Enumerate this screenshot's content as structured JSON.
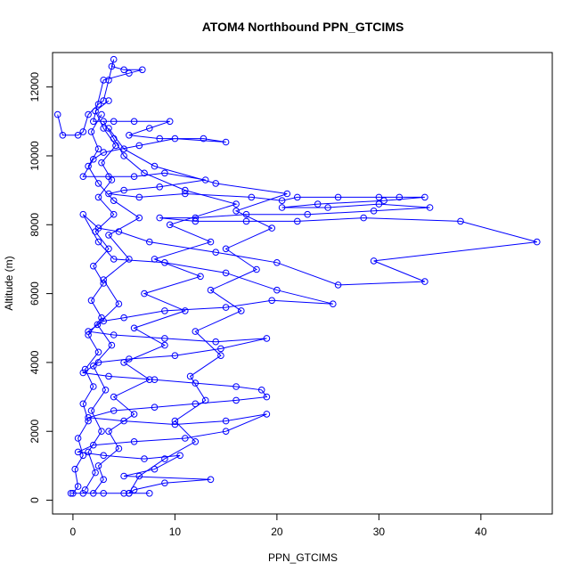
{
  "chart_data": {
    "type": "line",
    "title": "ATOM4 Northbound PPN_GTCIMS",
    "xlabel": "PPN_GTCIMS",
    "ylabel": "Altitude (m)",
    "xlim": [
      -2,
      47
    ],
    "ylim": [
      -400,
      13000
    ],
    "x_ticks": [
      0,
      10,
      20,
      30,
      40
    ],
    "y_ticks": [
      0,
      2000,
      4000,
      6000,
      8000,
      10000,
      12000
    ],
    "grid": false,
    "markers": "open-circle",
    "series_color": "#0000ff",
    "series": [
      {
        "values": [
          [
            -1.5,
            11200
          ],
          [
            -1.0,
            10600
          ],
          [
            0.5,
            10600
          ],
          [
            1.0,
            10700
          ],
          [
            1.5,
            11200
          ],
          [
            2.5,
            11500
          ],
          [
            3.0,
            11600
          ],
          [
            3.5,
            12200
          ],
          [
            4.0,
            12800
          ],
          [
            3.8,
            12600
          ],
          [
            5.0,
            12500
          ],
          [
            6.8,
            12500
          ],
          [
            5.5,
            12400
          ],
          [
            3.0,
            12200
          ],
          [
            2.0,
            11000
          ],
          [
            4.0,
            11000
          ],
          [
            6.0,
            11000
          ],
          [
            9.5,
            11000
          ],
          [
            7.5,
            10800
          ],
          [
            5.5,
            10600
          ],
          [
            8.5,
            10500
          ],
          [
            12.8,
            10500
          ],
          [
            15.0,
            10400
          ],
          [
            10.0,
            10500
          ],
          [
            6.5,
            10300
          ],
          [
            3.0,
            10100
          ],
          [
            2.0,
            9900
          ],
          [
            1.0,
            9400
          ],
          [
            3.5,
            9400
          ],
          [
            6.0,
            9400
          ],
          [
            9.0,
            9500
          ],
          [
            13.0,
            9300
          ],
          [
            8.5,
            9100
          ],
          [
            5.0,
            9000
          ],
          [
            3.5,
            8900
          ],
          [
            6.5,
            8800
          ],
          [
            11.0,
            8900
          ],
          [
            17.5,
            8800
          ],
          [
            20.5,
            8700
          ],
          [
            22.0,
            8800
          ],
          [
            26.0,
            8800
          ],
          [
            30.0,
            8800
          ],
          [
            32.0,
            8800
          ],
          [
            34.5,
            8800
          ],
          [
            30.5,
            8700
          ],
          [
            24.0,
            8600
          ],
          [
            20.5,
            8500
          ],
          [
            25.0,
            8500
          ],
          [
            30.0,
            8600
          ],
          [
            35.0,
            8500
          ],
          [
            29.5,
            8400
          ],
          [
            23.0,
            8300
          ],
          [
            17.0,
            8300
          ],
          [
            12.0,
            8200
          ],
          [
            8.5,
            8200
          ],
          [
            12.0,
            8100
          ],
          [
            17.0,
            8100
          ],
          [
            22.0,
            8100
          ],
          [
            28.5,
            8200
          ],
          [
            38.0,
            8100
          ],
          [
            45.5,
            7500
          ],
          [
            29.5,
            6950
          ],
          [
            34.5,
            6350
          ],
          [
            26.0,
            6250
          ],
          [
            20.0,
            6900
          ],
          [
            14.0,
            7200
          ],
          [
            7.5,
            7500
          ],
          [
            4.5,
            7800
          ],
          [
            2.5,
            7900
          ],
          [
            1.0,
            8300
          ],
          [
            2.5,
            7500
          ],
          [
            4.0,
            7000
          ],
          [
            9.0,
            6900
          ],
          [
            15.0,
            6600
          ],
          [
            20.0,
            6100
          ],
          [
            25.5,
            5700
          ],
          [
            19.5,
            5800
          ],
          [
            15.0,
            5600
          ],
          [
            9.0,
            5500
          ],
          [
            5.0,
            5300
          ],
          [
            3.0,
            5200
          ],
          [
            1.5,
            4900
          ],
          [
            4.0,
            4800
          ],
          [
            9.0,
            4700
          ],
          [
            14.0,
            4600
          ],
          [
            19.0,
            4700
          ],
          [
            14.5,
            4400
          ],
          [
            10.0,
            4200
          ],
          [
            5.5,
            4100
          ],
          [
            2.5,
            4000
          ],
          [
            1.0,
            3700
          ],
          [
            3.5,
            3600
          ],
          [
            8.0,
            3500
          ],
          [
            12.0,
            3400
          ],
          [
            16.0,
            3300
          ],
          [
            18.5,
            3200
          ],
          [
            19.0,
            3000
          ],
          [
            16.0,
            2900
          ],
          [
            12.0,
            2800
          ],
          [
            8.0,
            2700
          ],
          [
            4.0,
            2600
          ],
          [
            1.5,
            2400
          ],
          [
            5.0,
            2300
          ],
          [
            10.0,
            2200
          ],
          [
            15.0,
            2300
          ],
          [
            19.0,
            2500
          ],
          [
            15.0,
            2000
          ],
          [
            11.0,
            1800
          ],
          [
            6.0,
            1700
          ],
          [
            2.0,
            1600
          ],
          [
            0.5,
            1400
          ],
          [
            3.0,
            1300
          ],
          [
            7.0,
            1200
          ],
          [
            10.5,
            1300
          ],
          [
            8.0,
            900
          ],
          [
            5.0,
            700
          ],
          [
            13.5,
            600
          ],
          [
            9.0,
            500
          ],
          [
            6.0,
            300
          ],
          [
            5.5,
            200
          ],
          [
            7.5,
            200
          ],
          [
            5.0,
            200
          ],
          [
            3.0,
            200
          ],
          [
            1.0,
            200
          ],
          [
            -0.2,
            200
          ]
        ]
      },
      {
        "values": [
          [
            0.0,
            200
          ],
          [
            0.5,
            400
          ],
          [
            0.2,
            900
          ],
          [
            1.0,
            1300
          ],
          [
            0.5,
            1800
          ],
          [
            1.5,
            2300
          ],
          [
            1.0,
            2800
          ],
          [
            2.0,
            3300
          ],
          [
            1.2,
            3800
          ],
          [
            2.5,
            4300
          ],
          [
            1.5,
            4800
          ],
          [
            2.8,
            5300
          ],
          [
            1.8,
            5800
          ],
          [
            3.0,
            6300
          ],
          [
            2.0,
            6800
          ],
          [
            3.5,
            7300
          ],
          [
            2.2,
            7800
          ],
          [
            4.0,
            8300
          ],
          [
            2.5,
            8800
          ],
          [
            3.8,
            9300
          ],
          [
            2.8,
            9800
          ],
          [
            4.2,
            10300
          ],
          [
            3.0,
            10800
          ],
          [
            2.2,
            11300
          ],
          [
            3.5,
            11600
          ]
        ]
      },
      {
        "values": [
          [
            2.0,
            200
          ],
          [
            3.0,
            600
          ],
          [
            2.5,
            1000
          ],
          [
            4.5,
            1500
          ],
          [
            3.5,
            2000
          ],
          [
            6.0,
            2500
          ],
          [
            4.0,
            3000
          ],
          [
            7.5,
            3500
          ],
          [
            5.0,
            4000
          ],
          [
            9.0,
            4500
          ],
          [
            6.0,
            5000
          ],
          [
            11.0,
            5500
          ],
          [
            7.0,
            6000
          ],
          [
            12.5,
            6500
          ],
          [
            8.0,
            7000
          ],
          [
            13.5,
            7500
          ],
          [
            9.5,
            8000
          ],
          [
            16.0,
            8600
          ],
          [
            11.0,
            9000
          ],
          [
            7.0,
            9500
          ],
          [
            5.0,
            10000
          ],
          [
            4.0,
            10500
          ],
          [
            3.0,
            11000
          ]
        ]
      },
      {
        "values": [
          [
            5.5,
            200
          ],
          [
            6.5,
            700
          ],
          [
            9.0,
            1200
          ],
          [
            12.0,
            1700
          ],
          [
            10.0,
            2300
          ],
          [
            13.0,
            2900
          ],
          [
            11.5,
            3600
          ],
          [
            14.5,
            4200
          ],
          [
            12.0,
            4900
          ],
          [
            16.5,
            5500
          ],
          [
            13.5,
            6100
          ],
          [
            18.0,
            6700
          ],
          [
            15.0,
            7300
          ],
          [
            19.5,
            7900
          ],
          [
            16.0,
            8400
          ],
          [
            21.0,
            8900
          ],
          [
            14.0,
            9200
          ],
          [
            8.0,
            9700
          ],
          [
            5.0,
            10200
          ],
          [
            3.5,
            10800
          ]
        ]
      },
      {
        "values": [
          [
            1.2,
            300
          ],
          [
            2.2,
            800
          ],
          [
            1.5,
            1400
          ],
          [
            2.8,
            2000
          ],
          [
            1.8,
            2600
          ],
          [
            3.2,
            3200
          ],
          [
            2.0,
            3900
          ],
          [
            3.8,
            4500
          ],
          [
            2.4,
            5100
          ],
          [
            4.5,
            5700
          ],
          [
            3.0,
            6400
          ],
          [
            5.5,
            7000
          ],
          [
            3.5,
            7700
          ],
          [
            6.5,
            8200
          ],
          [
            4.0,
            8700
          ],
          [
            2.5,
            9200
          ],
          [
            1.5,
            9700
          ],
          [
            2.5,
            10200
          ],
          [
            1.8,
            10700
          ],
          [
            2.8,
            11200
          ]
        ]
      }
    ]
  }
}
